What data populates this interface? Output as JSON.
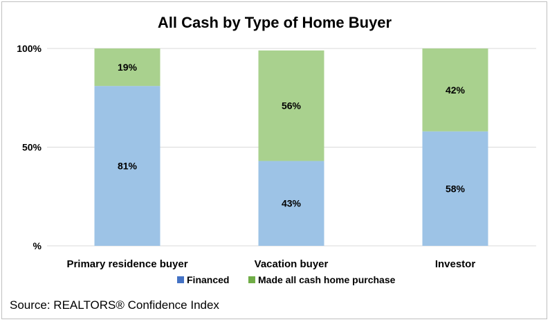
{
  "chart_data": {
    "type": "bar",
    "stacked": true,
    "title": "All Cash by Type of Home Buyer",
    "xlabel": "",
    "ylabel": "",
    "ylim": [
      0,
      100
    ],
    "yticks": [
      {
        "value": 0,
        "label": "%"
      },
      {
        "value": 50,
        "label": "50%"
      },
      {
        "value": 100,
        "label": "100%"
      }
    ],
    "grid": true,
    "legend_position": "bottom",
    "categories": [
      "Primary residence buyer",
      "Vacation buyer",
      "Investor"
    ],
    "series": [
      {
        "name": "Financed",
        "values": [
          81,
          43,
          58
        ],
        "labels": [
          "81%",
          "43%",
          "58%"
        ],
        "bar_color": "#9dc3e6",
        "legend_color": "#4472c4"
      },
      {
        "name": "Made all cash home purchase",
        "values": [
          19,
          56,
          42
        ],
        "labels": [
          "19%",
          "56%",
          "42%"
        ],
        "bar_color": "#a9d18e",
        "legend_color": "#70ad47"
      }
    ],
    "source": "Source: REALTORS® Confidence Index"
  }
}
